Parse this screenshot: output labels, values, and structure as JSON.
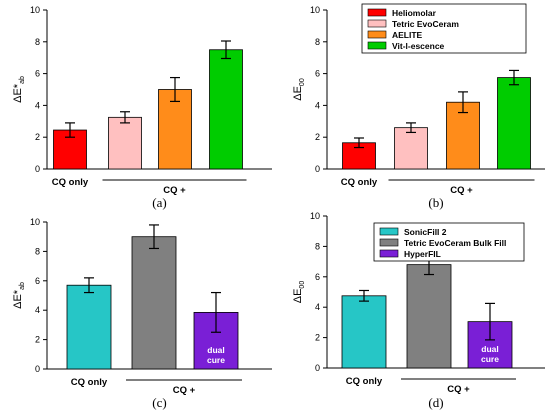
{
  "chart_data": [
    {
      "panel": "(a)",
      "type": "bar",
      "ylabel_main": "ΔE*",
      "ylabel_sub": "ab",
      "ylim": [
        0,
        10
      ],
      "yticks": [
        0,
        2,
        4,
        6,
        8,
        10
      ],
      "group_labels": [
        "CQ only",
        "CQ +"
      ],
      "bars": [
        {
          "value": 2.45,
          "error": 0.45,
          "color": "#ff0000"
        },
        {
          "value": 3.25,
          "error": 0.35,
          "color": "#ffc0c0"
        },
        {
          "value": 5.0,
          "error": 0.75,
          "color": "#ff8c1a"
        },
        {
          "value": 7.5,
          "error": 0.55,
          "color": "#00cc00"
        }
      ],
      "legend": []
    },
    {
      "panel": "(b)",
      "type": "bar",
      "ylabel_main": "ΔE",
      "ylabel_sub": "00",
      "ylim": [
        0,
        10
      ],
      "yticks": [
        0,
        2,
        4,
        6,
        8,
        10
      ],
      "group_labels": [
        "CQ only",
        "CQ +"
      ],
      "bars": [
        {
          "value": 1.65,
          "error": 0.3,
          "color": "#ff0000"
        },
        {
          "value": 2.6,
          "error": 0.3,
          "color": "#ffc0c0"
        },
        {
          "value": 4.2,
          "error": 0.65,
          "color": "#ff8c1a"
        },
        {
          "value": 5.75,
          "error": 0.45,
          "color": "#00cc00"
        }
      ],
      "legend": [
        {
          "name": "Heliomolar",
          "color": "#ff0000"
        },
        {
          "name": "Tetric EvoCeram",
          "color": "#ffc0c0"
        },
        {
          "name": "AELITE",
          "color": "#ff8c1a"
        },
        {
          "name": "Vit-l-escence",
          "color": "#00cc00"
        }
      ]
    },
    {
      "panel": "(c)",
      "type": "bar",
      "ylabel_main": "ΔE*",
      "ylabel_sub": "ab",
      "ylim": [
        0,
        10
      ],
      "yticks": [
        0,
        2,
        4,
        6,
        8,
        10
      ],
      "group_labels": [
        "CQ only",
        "CQ +"
      ],
      "bars": [
        {
          "value": 5.7,
          "error": 0.5,
          "color": "#26c6c6"
        },
        {
          "value": 9.0,
          "error": 0.8,
          "color": "#808080"
        },
        {
          "value": 3.85,
          "error": 1.35,
          "color": "#7a1fd6",
          "label": [
            "dual",
            "cure"
          ]
        }
      ],
      "legend": []
    },
    {
      "panel": "(d)",
      "type": "bar",
      "ylabel_main": "ΔE",
      "ylabel_sub": "00",
      "ylim": [
        0,
        10
      ],
      "yticks": [
        0,
        2,
        4,
        6,
        8,
        10
      ],
      "group_labels": [
        "CQ only",
        "CQ +"
      ],
      "bars": [
        {
          "value": 4.75,
          "error": 0.35,
          "color": "#26c6c6"
        },
        {
          "value": 6.8,
          "error": 0.65,
          "color": "#808080"
        },
        {
          "value": 3.05,
          "error": 1.2,
          "color": "#7a1fd6",
          "label": [
            "dual",
            "cure"
          ]
        }
      ],
      "legend": [
        {
          "name": "SonicFill 2",
          "color": "#26c6c6"
        },
        {
          "name": "Tetric EvoCeram Bulk Fill",
          "color": "#808080"
        },
        {
          "name": "HyperFIL",
          "color": "#7a1fd6"
        }
      ]
    }
  ]
}
